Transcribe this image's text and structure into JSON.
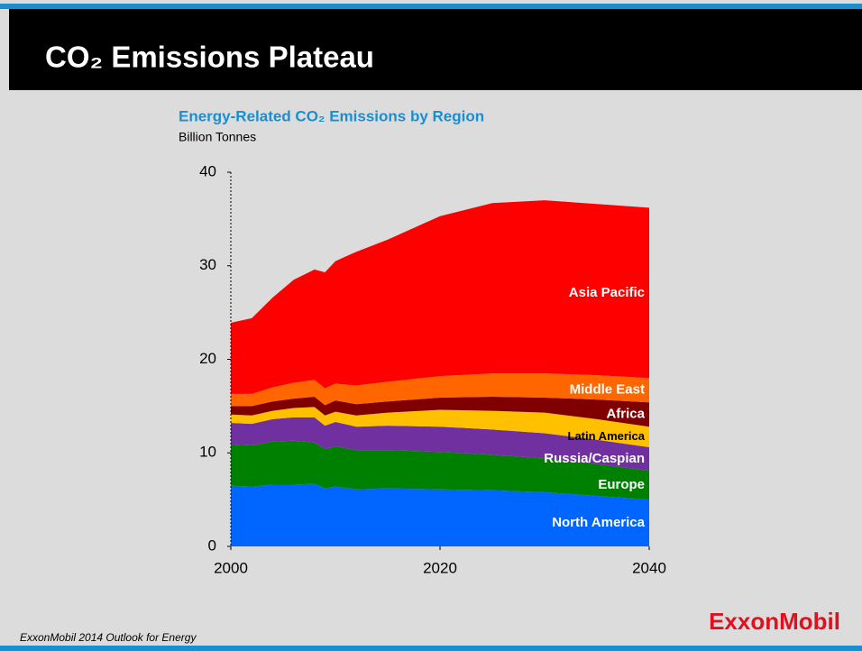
{
  "header": {
    "title": "CO₂ Emissions Plateau"
  },
  "footer": {
    "source": "ExxonMobil  2014 Outlook for Energy",
    "logo": "ExxonMobil"
  },
  "chart_data": {
    "type": "stacked_area",
    "title": "Energy-Related CO₂ Emissions by Region",
    "subtitle": "Billion Tonnes",
    "x": [
      2000,
      2002,
      2004,
      2006,
      2008,
      2009,
      2010,
      2012,
      2015,
      2020,
      2025,
      2030,
      2035,
      2040
    ],
    "series": [
      {
        "name": "North America",
        "color": "#0066ff",
        "label_color": "#ffffff",
        "values": [
          6.5,
          6.4,
          6.6,
          6.6,
          6.7,
          6.2,
          6.4,
          6.1,
          6.2,
          6.1,
          6.0,
          5.8,
          5.4,
          5.0
        ]
      },
      {
        "name": "Europe",
        "color": "#008000",
        "label_color": "#ffffff",
        "values": [
          4.4,
          4.4,
          4.6,
          4.7,
          4.4,
          4.2,
          4.3,
          4.2,
          4.1,
          4.0,
          3.8,
          3.6,
          3.4,
          3.1
        ]
      },
      {
        "name": "Russia/Caspian",
        "color": "#7030a0",
        "label_color": "#ffffff",
        "values": [
          2.3,
          2.3,
          2.4,
          2.5,
          2.7,
          2.5,
          2.6,
          2.5,
          2.6,
          2.7,
          2.7,
          2.7,
          2.6,
          2.5
        ]
      },
      {
        "name": "Latin America",
        "color": "#ffc000",
        "label_color": "#000000",
        "values": [
          0.9,
          0.9,
          0.9,
          1.0,
          1.1,
          1.1,
          1.1,
          1.2,
          1.4,
          1.8,
          2.0,
          2.2,
          2.2,
          2.2
        ]
      },
      {
        "name": "Africa",
        "color": "#800000",
        "label_color": "#ffffff",
        "values": [
          0.9,
          1.0,
          1.0,
          1.0,
          1.1,
          1.1,
          1.2,
          1.2,
          1.2,
          1.3,
          1.5,
          1.6,
          2.1,
          2.6
        ]
      },
      {
        "name": "Middle East",
        "color": "#ff6600",
        "label_color": "#ffffff",
        "values": [
          1.3,
          1.3,
          1.5,
          1.7,
          1.8,
          1.8,
          1.8,
          2.0,
          2.1,
          2.3,
          2.5,
          2.6,
          2.6,
          2.6
        ]
      },
      {
        "name": "Asia Pacific",
        "color": "#ff0000",
        "label_color": "#ffffff",
        "values": [
          7.6,
          8.1,
          9.6,
          11.0,
          11.8,
          12.4,
          13.1,
          14.3,
          15.2,
          17.1,
          18.2,
          18.5,
          18.3,
          18.2
        ]
      }
    ],
    "xlim": [
      2000,
      2040
    ],
    "xticks": [
      2000,
      2020,
      2040
    ],
    "ylim": [
      0,
      40
    ],
    "yticks": [
      0,
      10,
      20,
      30,
      40
    ]
  }
}
